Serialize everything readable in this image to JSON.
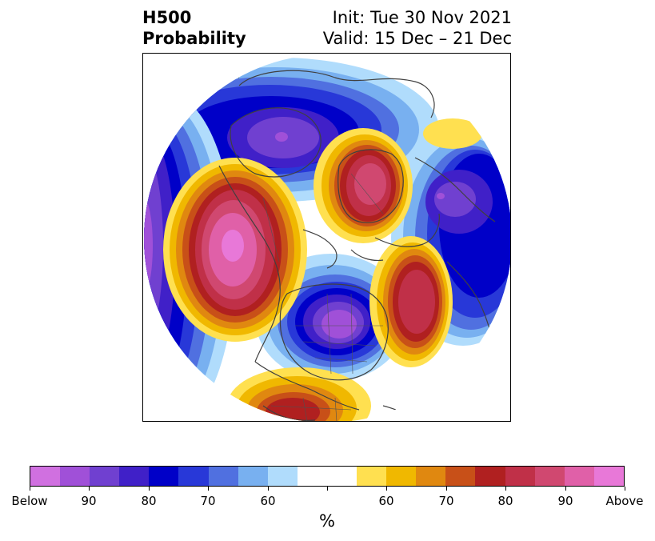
{
  "title": {
    "left_line1": "H500",
    "left_line2": "Probability",
    "right_line1": "Init: Tue 30 Nov 2021",
    "right_line2": "Valid: 15 Dec – 21 Dec"
  },
  "map": {
    "projection": "north polar stereographic",
    "coastlines_color": "#404040"
  },
  "colorbar": {
    "colors": [
      "#d070e0",
      "#a050d8",
      "#7040d0",
      "#4020c8",
      "#0000c8",
      "#2838d8",
      "#5070e0",
      "#78b0f0",
      "#b0dcfc",
      "#ffffff",
      "#ffffff",
      "#ffe050",
      "#f0b800",
      "#e08810",
      "#c85018",
      "#b02020",
      "#c03048",
      "#d04870",
      "#e060a8",
      "#e878d8"
    ],
    "labels": [
      "Below",
      "90",
      "80",
      "70",
      "60",
      "",
      "60",
      "70",
      "80",
      "90",
      "Above"
    ],
    "unit": "%"
  }
}
